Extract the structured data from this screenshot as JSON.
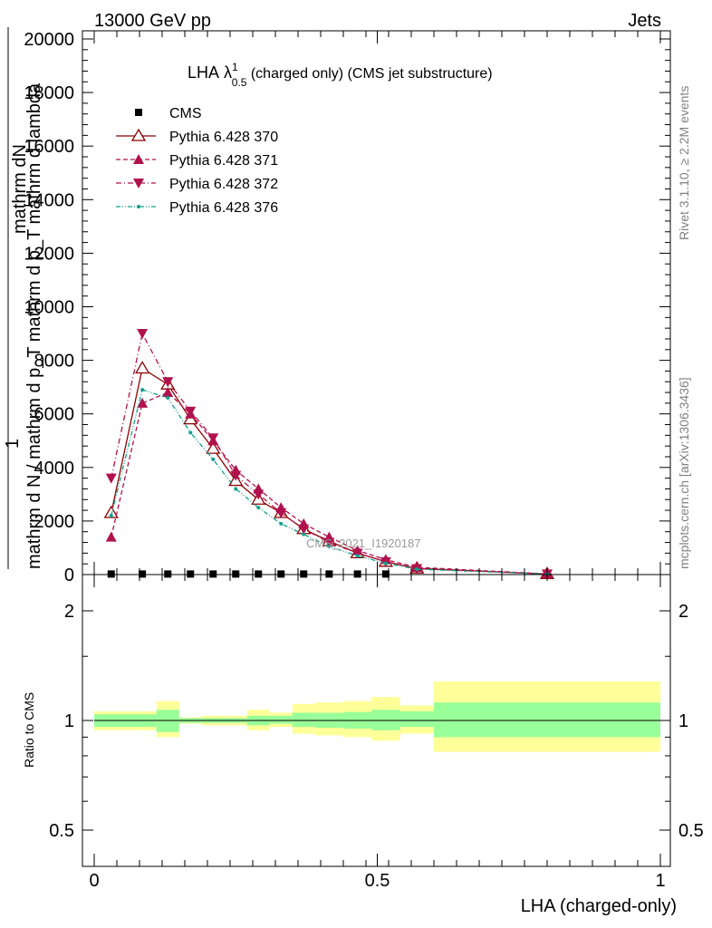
{
  "header": {
    "left": "13000 GeV pp",
    "right": "Jets"
  },
  "side_labels": {
    "rivet": "Rivet 3.1.10, ≥ 2.2M events",
    "mcplots": "mcplots.cern.ch [arXiv:1306.3436]"
  },
  "watermark": "CMS_2021_I1920187",
  "chart_data": [
    {
      "type": "line",
      "title": "LHA",
      "title_symbol": "λ",
      "title_sup": "1",
      "title_sub": "0.5",
      "title_rest": " (charged only) (CMS jet substructure)",
      "ylabel_top": "mathrm dN",
      "ylabel_bottom": "mathrm d N / mathrm d p_T mathrm d p_T mathrm d lambda",
      "ylabel_prefix": "1",
      "xlim": [
        0,
        1
      ],
      "ylim": [
        0,
        20000
      ],
      "yticks": [
        0,
        2000,
        4000,
        6000,
        8000,
        10000,
        12000,
        14000,
        16000,
        18000,
        20000
      ],
      "ytick_labels": [
        "0",
        "2000",
        "4000",
        "6000",
        "8000",
        "10000",
        "12000",
        "14000",
        "16000",
        "18000",
        "20000"
      ],
      "legend_position": "top-left",
      "series": [
        {
          "name": "CMS",
          "color": "#000000",
          "marker": "square",
          "x": [
            0.03,
            0.085,
            0.13,
            0.17,
            0.21,
            0.25,
            0.29,
            0.33,
            0.37,
            0.415,
            0.465,
            0.515
          ],
          "y": [
            20,
            20,
            20,
            20,
            20,
            20,
            20,
            20,
            20,
            20,
            20,
            20
          ]
        },
        {
          "name": "Pythia 6.428 370",
          "color": "#8b0000",
          "marker": "triangle-up-open",
          "line": "solid",
          "x": [
            0.03,
            0.085,
            0.13,
            0.17,
            0.21,
            0.25,
            0.29,
            0.33,
            0.37,
            0.415,
            0.465,
            0.515,
            0.57,
            0.8
          ],
          "y": [
            2300,
            7700,
            7100,
            5800,
            4700,
            3500,
            2800,
            2300,
            1700,
            1250,
            800,
            480,
            230,
            20
          ]
        },
        {
          "name": "Pythia 6.428 371",
          "color": "#b0124d",
          "marker": "triangle-up",
          "line": "dashed",
          "x": [
            0.03,
            0.085,
            0.13,
            0.17,
            0.21,
            0.25,
            0.29,
            0.33,
            0.37,
            0.415,
            0.465,
            0.515,
            0.57,
            0.8
          ],
          "y": [
            1400,
            6400,
            6800,
            6000,
            5000,
            3900,
            3200,
            2500,
            1900,
            1400,
            900,
            560,
            270,
            25
          ]
        },
        {
          "name": "Pythia 6.428 372",
          "color": "#b0124d",
          "marker": "triangle-down",
          "line": "dashdot",
          "x": [
            0.03,
            0.085,
            0.13,
            0.17,
            0.21,
            0.25,
            0.29,
            0.33,
            0.37,
            0.415,
            0.465,
            0.515,
            0.57,
            0.8
          ],
          "y": [
            3600,
            9000,
            7200,
            6100,
            5100,
            3700,
            3000,
            2300,
            1700,
            1200,
            800,
            480,
            220,
            20
          ]
        },
        {
          "name": "Pythia 6.428 376",
          "color": "#12a08c",
          "marker": "dot",
          "line": "dashdotdot",
          "x": [
            0.03,
            0.085,
            0.13,
            0.17,
            0.21,
            0.25,
            0.29,
            0.33,
            0.37,
            0.415,
            0.465,
            0.515,
            0.57,
            0.8
          ],
          "y": [
            2200,
            6900,
            6600,
            5300,
            4300,
            3200,
            2500,
            1900,
            1500,
            1050,
            700,
            420,
            200,
            18
          ]
        }
      ]
    },
    {
      "type": "area",
      "ylabel": "Ratio to CMS",
      "xlabel": "LHA (charged-only)",
      "xlim": [
        0,
        1
      ],
      "ylim": [
        0.4,
        2.3
      ],
      "log_y": true,
      "xticks": [
        0,
        0.5,
        1
      ],
      "xtick_labels": [
        "0",
        "0.5",
        "1"
      ],
      "yticks": [
        0.5,
        1,
        2
      ],
      "ytick_labels": [
        "0.5",
        "1",
        "2"
      ],
      "reference_line": 1,
      "bin_edges": [
        0,
        0.06,
        0.11,
        0.15,
        0.19,
        0.23,
        0.27,
        0.31,
        0.35,
        0.39,
        0.44,
        0.49,
        0.54,
        0.6,
        1
      ],
      "inner_band": {
        "color": "#99ff99",
        "low": [
          0.96,
          0.96,
          0.93,
          0.985,
          0.985,
          0.985,
          0.97,
          0.98,
          0.96,
          0.955,
          0.95,
          0.94,
          0.96,
          0.9,
          0.91
        ],
        "high": [
          1.04,
          1.04,
          1.07,
          1.015,
          1.015,
          1.015,
          1.03,
          1.03,
          1.05,
          1.05,
          1.055,
          1.07,
          1.06,
          1.12,
          1.11
        ]
      },
      "outer_band": {
        "color": "#ffff99",
        "low": [
          0.94,
          0.94,
          0.9,
          0.98,
          0.97,
          0.97,
          0.94,
          0.96,
          0.92,
          0.91,
          0.9,
          0.88,
          0.92,
          0.82,
          0.85
        ],
        "high": [
          1.06,
          1.06,
          1.13,
          1.02,
          1.03,
          1.03,
          1.07,
          1.05,
          1.11,
          1.12,
          1.13,
          1.16,
          1.1,
          1.28,
          1.25
        ]
      }
    }
  ]
}
